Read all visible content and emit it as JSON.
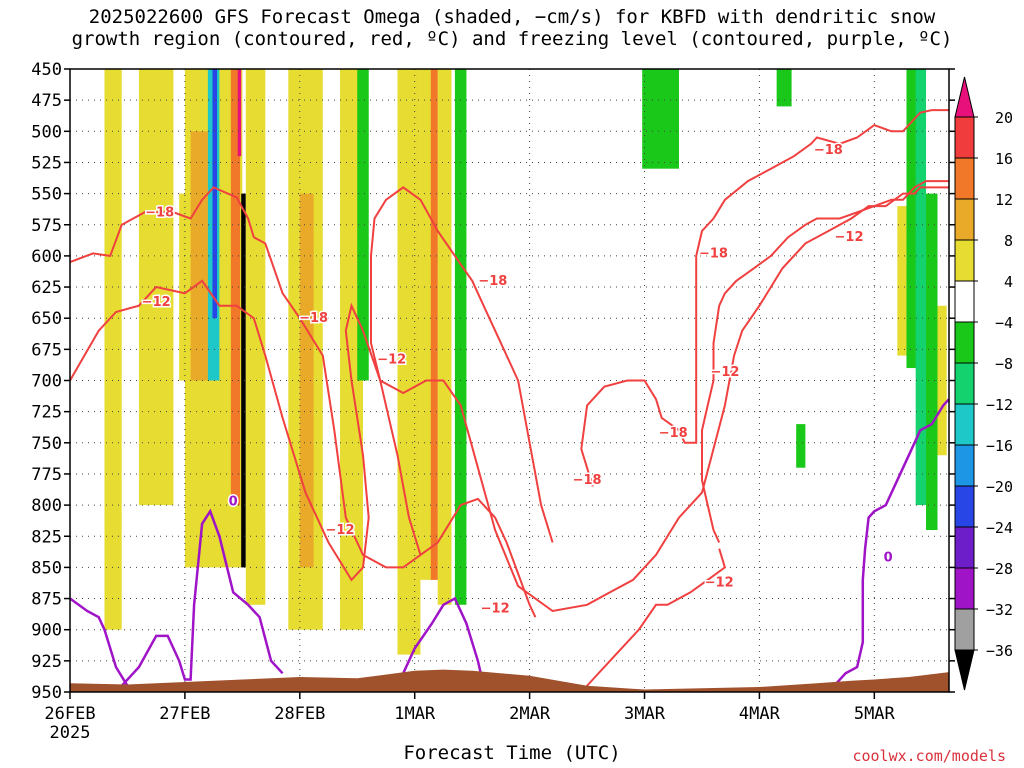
{
  "title_line1": "2025022600 GFS Forecast Omega (shaded, −cm/s) for KBFD with dendritic snow",
  "title_line2": "growth region (contoured, red, ºC) and freezing level (contoured, purple, ºC)",
  "xlabel": "Forecast Time (UTC)",
  "credit": "coolwx.com/models",
  "chart_data": {
    "type": "heatmap",
    "ylabel": "",
    "y_levels": [
      450,
      475,
      500,
      525,
      550,
      575,
      600,
      625,
      650,
      675,
      700,
      725,
      750,
      775,
      800,
      825,
      850,
      875,
      900,
      925,
      950
    ],
    "y_axis": "pressure (hPa), inverted",
    "x_ticks": [
      "26FEB",
      "27FEB",
      "28FEB",
      "1MAR",
      "2MAR",
      "3MAR",
      "4MAR",
      "5MAR"
    ],
    "x_year_label": "2025",
    "x_range_days": [
      0,
      7.65
    ],
    "grid": "dotted",
    "colorbar": {
      "labels": [
        "20",
        "16",
        "12",
        "8",
        "4",
        "−4",
        "−8",
        "−12",
        "−16",
        "−20",
        "−24",
        "−28",
        "−32",
        "−36"
      ],
      "colors": [
        "#e8107a",
        "#f03c3c",
        "#f07828",
        "#e8aa28",
        "#e6dc32",
        "#ffffff",
        "#19c819",
        "#14d26e",
        "#1ec8c8",
        "#1e96e6",
        "#2846e6",
        "#6e1ec8",
        "#a014c8",
        "#a0a0a0",
        "#000000"
      ]
    },
    "shading": [
      {
        "x0": 0.3,
        "x1": 0.45,
        "p0": 450,
        "p1": 900,
        "color": "#e6dc32"
      },
      {
        "x0": 0.6,
        "x1": 0.9,
        "p0": 450,
        "p1": 800,
        "color": "#e6dc32"
      },
      {
        "x0": 0.95,
        "x1": 1.05,
        "p0": 550,
        "p1": 700,
        "color": "#e6dc32"
      },
      {
        "x0": 1.0,
        "x1": 1.5,
        "p0": 450,
        "p1": 850,
        "color": "#e6dc32"
      },
      {
        "x0": 1.05,
        "x1": 1.2,
        "p0": 500,
        "p1": 700,
        "color": "#e8aa28"
      },
      {
        "x0": 1.2,
        "x1": 1.3,
        "p0": 450,
        "p1": 700,
        "color": "#1ec8c8"
      },
      {
        "x0": 1.24,
        "x1": 1.28,
        "p0": 450,
        "p1": 650,
        "color": "#2846e6"
      },
      {
        "x0": 1.4,
        "x1": 1.48,
        "p0": 450,
        "p1": 800,
        "color": "#f07828"
      },
      {
        "x0": 1.46,
        "x1": 1.49,
        "p0": 450,
        "p1": 520,
        "color": "#e8107a"
      },
      {
        "x0": 1.49,
        "x1": 1.53,
        "p0": 550,
        "p1": 850,
        "color": "#000000"
      },
      {
        "x0": 1.53,
        "x1": 1.7,
        "p0": 450,
        "p1": 880,
        "color": "#e6dc32"
      },
      {
        "x0": 1.9,
        "x1": 2.2,
        "p0": 450,
        "p1": 900,
        "color": "#e6dc32"
      },
      {
        "x0": 2.0,
        "x1": 2.12,
        "p0": 550,
        "p1": 850,
        "color": "#e8aa28"
      },
      {
        "x0": 2.35,
        "x1": 2.55,
        "p0": 450,
        "p1": 900,
        "color": "#e6dc32"
      },
      {
        "x0": 2.5,
        "x1": 2.6,
        "p0": 450,
        "p1": 700,
        "color": "#19c819"
      },
      {
        "x0": 2.85,
        "x1": 3.05,
        "p0": 450,
        "p1": 920,
        "color": "#e6dc32"
      },
      {
        "x0": 3.05,
        "x1": 3.2,
        "p0": 450,
        "p1": 860,
        "color": "#e6dc32"
      },
      {
        "x0": 3.2,
        "x1": 3.32,
        "p0": 450,
        "p1": 880,
        "color": "#e6dc32"
      },
      {
        "x0": 3.14,
        "x1": 3.2,
        "p0": 450,
        "p1": 860,
        "color": "#f07828"
      },
      {
        "x0": 3.35,
        "x1": 3.45,
        "p0": 450,
        "p1": 880,
        "color": "#19c819"
      },
      {
        "x0": 4.98,
        "x1": 5.3,
        "p0": 450,
        "p1": 530,
        "color": "#19c819"
      },
      {
        "x0": 6.15,
        "x1": 6.28,
        "p0": 450,
        "p1": 480,
        "color": "#19c819"
      },
      {
        "x0": 6.32,
        "x1": 6.4,
        "p0": 735,
        "p1": 770,
        "color": "#19c819"
      },
      {
        "x0": 7.2,
        "x1": 7.3,
        "p0": 560,
        "p1": 680,
        "color": "#e6dc32"
      },
      {
        "x0": 7.28,
        "x1": 7.4,
        "p0": 450,
        "p1": 690,
        "color": "#19c819"
      },
      {
        "x0": 7.36,
        "x1": 7.45,
        "p0": 450,
        "p1": 800,
        "color": "#14d26e"
      },
      {
        "x0": 7.45,
        "x1": 7.55,
        "p0": 550,
        "p1": 820,
        "color": "#19c819"
      },
      {
        "x0": 7.55,
        "x1": 7.63,
        "p0": 640,
        "p1": 760,
        "color": "#e6dc32"
      }
    ],
    "contours_red": [
      {
        "label": "−12",
        "points": [
          [
            0,
            700
          ],
          [
            0.25,
            660
          ],
          [
            0.4,
            645
          ],
          [
            0.6,
            640
          ],
          [
            0.75,
            625
          ],
          [
            1.0,
            630
          ],
          [
            1.15,
            620
          ],
          [
            1.3,
            640
          ],
          [
            1.45,
            640
          ],
          [
            1.6,
            650
          ],
          [
            1.7,
            680
          ],
          [
            1.85,
            730
          ],
          [
            2.05,
            790
          ],
          [
            2.25,
            830
          ],
          [
            2.45,
            860
          ],
          [
            2.55,
            850
          ],
          [
            2.6,
            810
          ],
          [
            2.55,
            760
          ],
          [
            2.45,
            700
          ],
          [
            2.4,
            660
          ],
          [
            2.45,
            640
          ],
          [
            2.55,
            660
          ],
          [
            2.7,
            700
          ],
          [
            2.9,
            710
          ],
          [
            3.1,
            700
          ],
          [
            3.25,
            700
          ],
          [
            3.4,
            720
          ],
          [
            3.55,
            770
          ],
          [
            3.7,
            820
          ],
          [
            3.9,
            865
          ],
          [
            4.2,
            885
          ],
          [
            4.5,
            880
          ],
          [
            4.7,
            870
          ],
          [
            4.9,
            860
          ],
          [
            5.1,
            840
          ],
          [
            5.3,
            810
          ],
          [
            5.5,
            790
          ],
          [
            5.7,
            720
          ],
          [
            5.78,
            680
          ],
          [
            5.85,
            660
          ],
          [
            6.0,
            640
          ],
          [
            6.2,
            610
          ],
          [
            6.4,
            590
          ],
          [
            6.6,
            580
          ],
          [
            6.8,
            570
          ],
          [
            6.95,
            560
          ],
          [
            7.1,
            560
          ],
          [
            7.25,
            550
          ],
          [
            7.35,
            550
          ],
          [
            7.4,
            545
          ],
          [
            7.5,
            545
          ],
          [
            7.65,
            545
          ]
        ]
      },
      {
        "label": "−18",
        "points": [
          [
            0,
            605
          ],
          [
            0.2,
            598
          ],
          [
            0.35,
            600
          ],
          [
            0.45,
            575
          ],
          [
            0.65,
            565
          ],
          [
            0.9,
            565
          ],
          [
            1.05,
            570
          ],
          [
            1.15,
            555
          ],
          [
            1.25,
            545
          ],
          [
            1.45,
            553
          ],
          [
            1.55,
            570
          ],
          [
            1.6,
            585
          ],
          [
            1.7,
            590
          ],
          [
            1.85,
            630
          ],
          [
            2.0,
            650
          ],
          [
            2.2,
            680
          ],
          [
            2.3,
            740
          ],
          [
            2.4,
            810
          ],
          [
            2.55,
            840
          ],
          [
            2.75,
            850
          ],
          [
            2.9,
            850
          ],
          [
            3.05,
            840
          ],
          [
            3.2,
            830
          ],
          [
            3.3,
            815
          ],
          [
            3.4,
            800
          ],
          [
            3.55,
            795
          ],
          [
            3.7,
            810
          ],
          [
            3.8,
            830
          ],
          [
            3.9,
            855
          ],
          [
            4.0,
            880
          ],
          [
            4.05,
            890
          ]
        ]
      },
      {
        "label": "−18",
        "points": [
          [
            3.05,
            840
          ],
          [
            2.95,
            810
          ],
          [
            2.85,
            760
          ],
          [
            2.7,
            700
          ],
          [
            2.62,
            670
          ],
          [
            2.62,
            600
          ],
          [
            2.65,
            570
          ],
          [
            2.75,
            555
          ],
          [
            2.9,
            545
          ],
          [
            3.05,
            555
          ],
          [
            3.2,
            580
          ],
          [
            3.35,
            600
          ],
          [
            3.5,
            620
          ],
          [
            3.6,
            640
          ],
          [
            3.75,
            670
          ],
          [
            3.9,
            700
          ],
          [
            4.0,
            750
          ],
          [
            4.1,
            800
          ],
          [
            4.2,
            830
          ]
        ]
      },
      {
        "label": "−18",
        "points": [
          [
            4.55,
            785
          ],
          [
            4.45,
            755
          ],
          [
            4.5,
            720
          ],
          [
            4.65,
            705
          ],
          [
            4.85,
            700
          ],
          [
            5.0,
            700
          ],
          [
            5.1,
            715
          ],
          [
            5.15,
            730
          ],
          [
            5.3,
            740
          ],
          [
            5.35,
            750
          ],
          [
            5.45,
            750
          ],
          [
            5.45,
            710
          ],
          [
            5.45,
            660
          ],
          [
            5.45,
            620
          ],
          [
            5.45,
            600
          ],
          [
            5.5,
            580
          ],
          [
            5.6,
            570
          ],
          [
            5.7,
            555
          ],
          [
            5.9,
            540
          ],
          [
            6.1,
            530
          ],
          [
            6.3,
            520
          ],
          [
            6.45,
            510
          ],
          [
            6.5,
            505
          ],
          [
            6.7,
            510
          ],
          [
            6.85,
            505
          ],
          [
            7.0,
            495
          ],
          [
            7.15,
            500
          ],
          [
            7.25,
            500
          ],
          [
            7.35,
            490
          ],
          [
            7.4,
            485
          ],
          [
            7.5,
            483
          ],
          [
            7.65,
            483
          ]
        ]
      },
      {
        "label": "−12",
        "points": [
          [
            5.65,
            830
          ],
          [
            5.6,
            820
          ],
          [
            5.55,
            800
          ],
          [
            5.5,
            780
          ],
          [
            5.5,
            740
          ],
          [
            5.55,
            720
          ],
          [
            5.6,
            700
          ],
          [
            5.6,
            670
          ],
          [
            5.65,
            640
          ],
          [
            5.7,
            630
          ],
          [
            5.8,
            620
          ],
          [
            5.95,
            610
          ],
          [
            6.1,
            600
          ],
          [
            6.25,
            585
          ],
          [
            6.4,
            575
          ],
          [
            6.5,
            570
          ],
          [
            6.7,
            570
          ],
          [
            6.85,
            565
          ],
          [
            7.0,
            560
          ],
          [
            7.15,
            555
          ],
          [
            7.25,
            555
          ],
          [
            7.35,
            545
          ],
          [
            7.45,
            540
          ],
          [
            7.65,
            540
          ]
        ]
      },
      {
        "label": "−12",
        "points": [
          [
            5.65,
            835
          ],
          [
            5.7,
            850
          ],
          [
            5.55,
            860
          ],
          [
            5.4,
            870
          ],
          [
            5.2,
            880
          ],
          [
            5.1,
            880
          ],
          [
            4.95,
            900
          ],
          [
            4.75,
            920
          ],
          [
            4.55,
            940
          ],
          [
            4.45,
            950
          ]
        ]
      }
    ],
    "contours_purple": [
      {
        "label": "0",
        "points": [
          [
            0,
            875
          ],
          [
            0.15,
            885
          ],
          [
            0.25,
            890
          ],
          [
            0.3,
            900
          ],
          [
            0.4,
            930
          ],
          [
            0.5,
            945
          ]
        ]
      },
      {
        "label": "0",
        "points": [
          [
            0.45,
            945
          ],
          [
            0.6,
            930
          ],
          [
            0.75,
            905
          ],
          [
            0.85,
            905
          ],
          [
            0.95,
            925
          ],
          [
            1.0,
            940
          ],
          [
            1.05,
            940
          ],
          [
            1.08,
            880
          ],
          [
            1.15,
            815
          ],
          [
            1.22,
            805
          ],
          [
            1.3,
            825
          ],
          [
            1.42,
            870
          ],
          [
            1.55,
            880
          ],
          [
            1.65,
            890
          ],
          [
            1.75,
            925
          ],
          [
            1.85,
            935
          ]
        ]
      },
      {
        "label": "0",
        "points": [
          [
            2.85,
            945
          ],
          [
            3.0,
            915
          ],
          [
            3.15,
            895
          ],
          [
            3.25,
            880
          ],
          [
            3.35,
            875
          ],
          [
            3.45,
            895
          ],
          [
            3.55,
            925
          ],
          [
            3.6,
            945
          ]
        ]
      },
      {
        "label": "0",
        "points": [
          [
            6.65,
            945
          ],
          [
            6.75,
            935
          ],
          [
            6.85,
            930
          ],
          [
            6.9,
            910
          ],
          [
            6.9,
            860
          ],
          [
            6.92,
            835
          ],
          [
            6.95,
            810
          ],
          [
            7.0,
            805
          ],
          [
            7.1,
            800
          ],
          [
            7.2,
            780
          ],
          [
            7.3,
            760
          ],
          [
            7.4,
            740
          ],
          [
            7.5,
            735
          ],
          [
            7.6,
            720
          ],
          [
            7.65,
            715
          ]
        ]
      }
    ],
    "terrain": {
      "color": "#a0522d",
      "surface": [
        [
          0,
          943
        ],
        [
          0.5,
          944
        ],
        [
          1.0,
          942
        ],
        [
          1.5,
          940
        ],
        [
          2.0,
          938
        ],
        [
          2.5,
          939
        ],
        [
          3.0,
          933
        ],
        [
          3.25,
          932
        ],
        [
          3.5,
          933
        ],
        [
          4.0,
          937
        ],
        [
          4.5,
          945
        ],
        [
          5.0,
          948
        ],
        [
          5.5,
          947
        ],
        [
          6.0,
          946
        ],
        [
          6.5,
          943
        ],
        [
          6.8,
          941
        ],
        [
          7.0,
          940
        ],
        [
          7.3,
          938
        ],
        [
          7.65,
          934
        ]
      ]
    }
  }
}
